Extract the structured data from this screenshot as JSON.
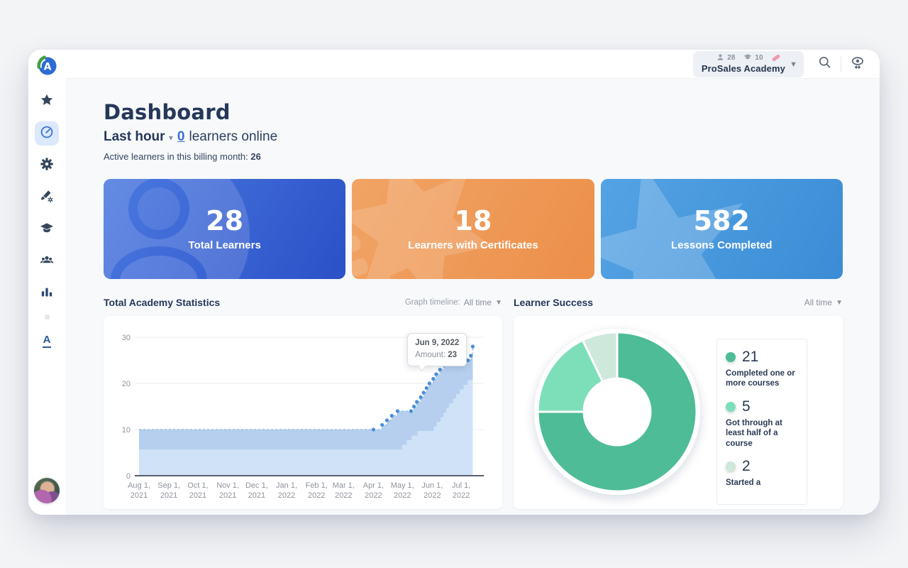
{
  "topbar": {
    "stats": {
      "learners": "28",
      "courses": "10"
    },
    "academy_name": "ProSales Academy"
  },
  "sidebar": {
    "icons": [
      "academy-logo",
      "star",
      "dashboard-gauge",
      "settings-gear",
      "customization-brush",
      "courses-graduation-cap",
      "learners-group",
      "reports-bar-chart",
      "branding-letter-a"
    ]
  },
  "header": {
    "title": "Dashboard",
    "last_hour_label": "Last hour",
    "online_count": "0",
    "online_suffix": "learners online",
    "active_learners_label": "Active learners in this billing month:",
    "active_learners_count": "26"
  },
  "stat_cards": [
    {
      "value": "28",
      "label": "Total Learners"
    },
    {
      "value": "18",
      "label": "Learners with Certificates"
    },
    {
      "value": "582",
      "label": "Lessons Completed"
    }
  ],
  "statistics_panel": {
    "title": "Total Academy Statistics",
    "timeline_label": "Graph timeline:",
    "timeline_value": "All time"
  },
  "learner_success_panel": {
    "title": "Learner Success",
    "timeline_value": "All time",
    "legend": [
      {
        "value": "21",
        "label": "Completed one or more courses",
        "color": "#4dbc97"
      },
      {
        "value": "5",
        "label": "Got through at least half of a course",
        "color": "#7ddfba"
      },
      {
        "value": "2",
        "label": "Started a",
        "color": "#cfe8dc"
      }
    ]
  },
  "chart_data": [
    {
      "type": "area",
      "title": "Total Academy Statistics",
      "series_name": "Amount",
      "ylim": [
        0,
        30
      ],
      "yticks": [
        0,
        10,
        20,
        30
      ],
      "x_ticks": [
        "Aug 1, 2021",
        "Sep 1, 2021",
        "Oct 1, 2021",
        "Nov 1, 2021",
        "Dec 1, 2021",
        "Jan 1, 2022",
        "Feb 1, 2022",
        "Mar 1, 2022",
        "Apr 1, 2022",
        "May 1, 2022",
        "Jun 1, 2022",
        "Jul 1, 2022"
      ],
      "x_range": [
        "Aug 1, 2021",
        "Jul 20, 2022"
      ],
      "points": [
        [
          "Aug 1, 2021",
          10
        ],
        [
          "Sep 1, 2021",
          10
        ],
        [
          "Oct 1, 2021",
          10
        ],
        [
          "Nov 1, 2021",
          10
        ],
        [
          "Dec 1, 2021",
          10
        ],
        [
          "Jan 1, 2022",
          10
        ],
        [
          "Feb 1, 2022",
          10
        ],
        [
          "Mar 1, 2022",
          10
        ],
        [
          "Apr 1, 2022",
          10
        ],
        [
          "Apr 10, 2022",
          11
        ],
        [
          "Apr 15, 2022",
          12
        ],
        [
          "Apr 20, 2022",
          13
        ],
        [
          "Apr 26, 2022",
          14
        ],
        [
          "May 10, 2022",
          14
        ],
        [
          "May 13, 2022",
          15
        ],
        [
          "May 16, 2022",
          16
        ],
        [
          "May 20, 2022",
          17
        ],
        [
          "May 23, 2022",
          18
        ],
        [
          "May 26, 2022",
          19
        ],
        [
          "May 29, 2022",
          20
        ],
        [
          "Jun 2, 2022",
          21
        ],
        [
          "Jun 5, 2022",
          22
        ],
        [
          "Jun 9, 2022",
          23
        ],
        [
          "Jun 13, 2022",
          24
        ],
        [
          "Jun 17, 2022",
          25
        ],
        [
          "Jul 8, 2022",
          25
        ],
        [
          "Jul 11, 2022",
          26
        ],
        [
          "Jul 13, 2022",
          28
        ]
      ],
      "dots_start": "Apr 1, 2022",
      "tooltip": {
        "date": "Jun 9, 2022",
        "label": "Amount:",
        "value": "23"
      },
      "line_color": "#9cbfe7",
      "band_color": "#9dbce5",
      "fill_color": "#cfe2f8",
      "dot_color": "#4a8fd8",
      "grid_on": true,
      "legend_position": "none"
    },
    {
      "type": "donut",
      "title": "Learner Success",
      "labels": [
        "Completed one or more courses",
        "Got through at least half of a course",
        "Started a"
      ],
      "values": [
        21,
        5,
        2
      ],
      "total": 28,
      "colors": [
        "#4dbc97",
        "#7ddfba",
        "#cfe8dc"
      ],
      "legend_position": "right"
    }
  ]
}
